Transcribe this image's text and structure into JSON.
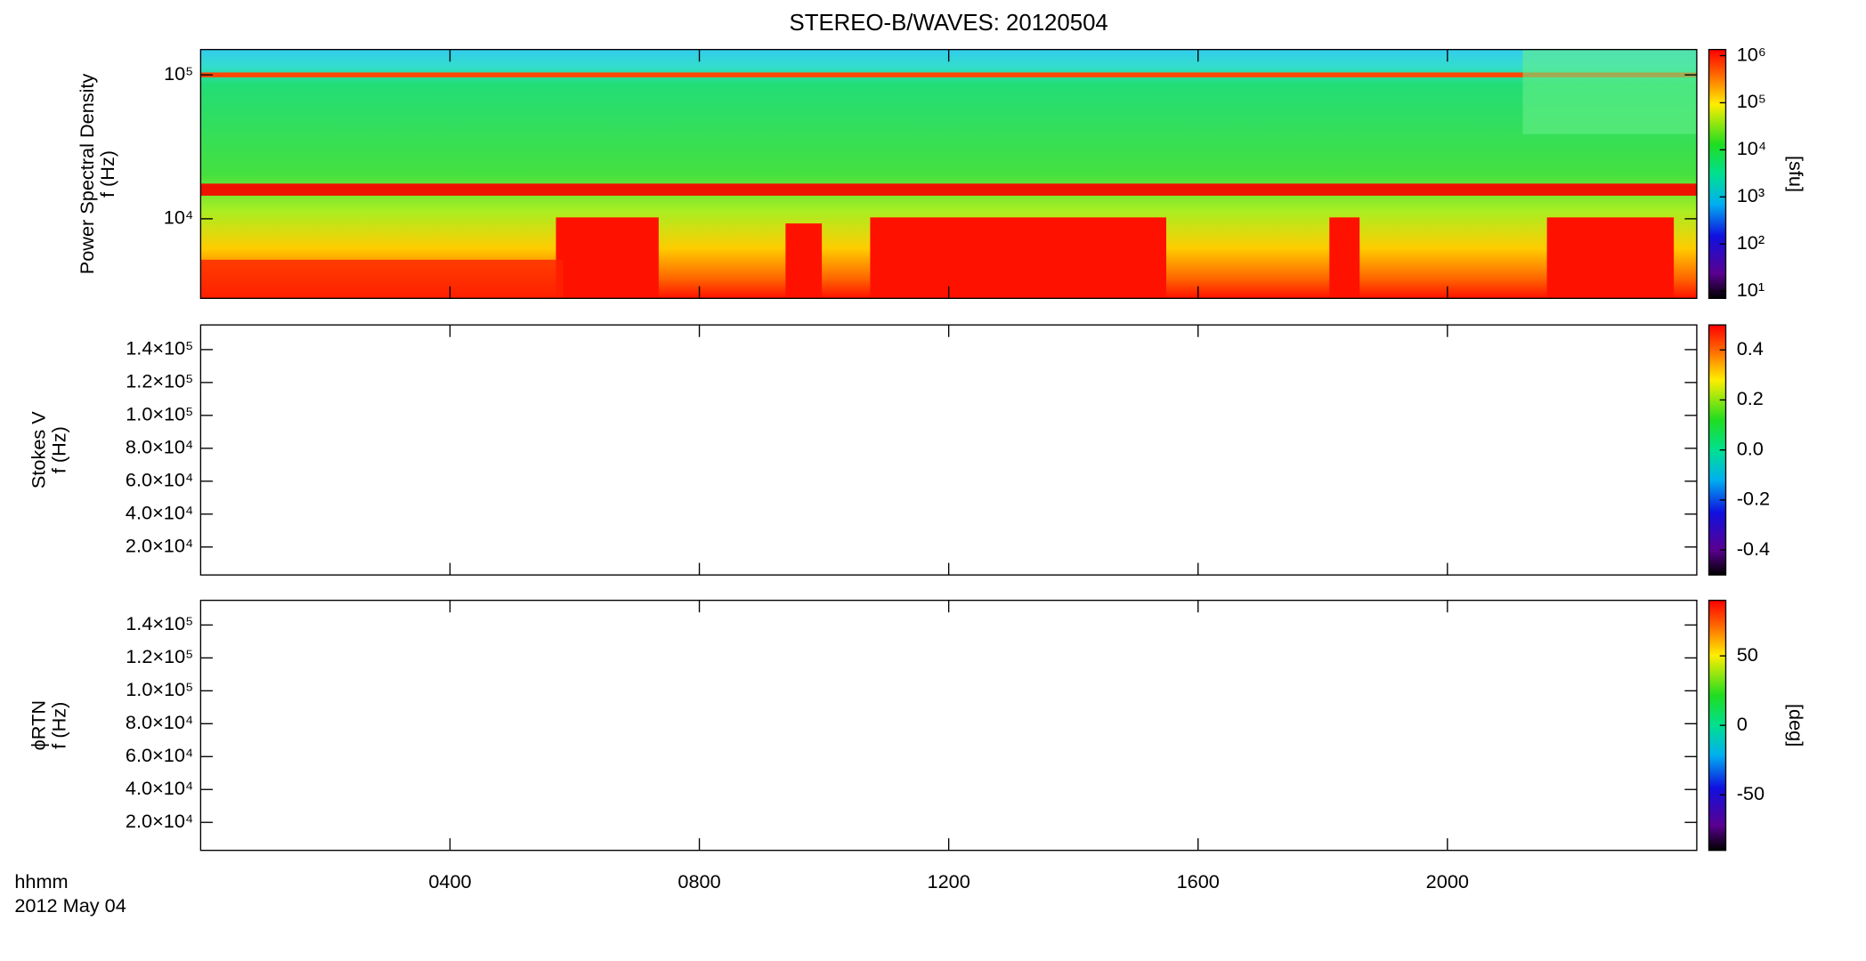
{
  "chart_data": [
    {
      "type": "spectrogram",
      "title": "STEREO-B/WAVES: 20120504",
      "ylabel": [
        "Power Spectral Density",
        "f (Hz)"
      ],
      "yscale": "log",
      "ylim": [
        2800,
        150000
      ],
      "yticks": [
        {
          "value": 10000,
          "label": "10⁴"
        },
        {
          "value": 100000,
          "label": "10⁵"
        }
      ],
      "cscale": "log",
      "clim": [
        7,
        1350000
      ],
      "cticks": [
        {
          "value": 10,
          "label": "10¹"
        },
        {
          "value": 100,
          "label": "10²"
        },
        {
          "value": 1000,
          "label": "10³"
        },
        {
          "value": 10000,
          "label": "10⁴"
        },
        {
          "value": 100000,
          "label": "10⁵"
        },
        {
          "value": 1000000,
          "label": "10⁶"
        }
      ],
      "clabel": "[sfu]"
    },
    {
      "type": "spectrogram",
      "ylabel": [
        "Stokes V",
        "f (Hz)"
      ],
      "yscale": "linear",
      "ylim": [
        3000,
        155000
      ],
      "yticks": [
        {
          "value": 20000,
          "label": "2.0×10⁴"
        },
        {
          "value": 40000,
          "label": "4.0×10⁴"
        },
        {
          "value": 60000,
          "label": "6.0×10⁴"
        },
        {
          "value": 80000,
          "label": "8.0×10⁴"
        },
        {
          "value": 100000,
          "label": "1.0×10⁵"
        },
        {
          "value": 120000,
          "label": "1.2×10⁵"
        },
        {
          "value": 140000,
          "label": "1.4×10⁵"
        }
      ],
      "cscale": "linear",
      "clim": [
        -0.5,
        0.5
      ],
      "cticks": [
        -0.4,
        -0.2,
        {
          "value": 0,
          "label": "0.0"
        },
        0.2,
        0.4
      ]
    },
    {
      "type": "spectrogram",
      "ylabel": [
        "ϕRTN",
        "f (Hz)"
      ],
      "yscale": "linear",
      "ylim": [
        3000,
        155000
      ],
      "yticks": [
        {
          "value": 20000,
          "label": "2.0×10⁴"
        },
        {
          "value": 40000,
          "label": "4.0×10⁴"
        },
        {
          "value": 60000,
          "label": "6.0×10⁴"
        },
        {
          "value": 80000,
          "label": "8.0×10⁴"
        },
        {
          "value": 100000,
          "label": "1.0×10⁵"
        },
        {
          "value": 120000,
          "label": "1.2×10⁵"
        },
        {
          "value": 140000,
          "label": "1.4×10⁵"
        }
      ],
      "cscale": "linear",
      "clim": [
        -90,
        90
      ],
      "cticks": [
        -50,
        0,
        50
      ],
      "clabel": "[deg]",
      "xlabel": "hhmm",
      "date": "2012 May 04",
      "xlim": [
        0,
        1440
      ],
      "xticks": [
        {
          "value": 240,
          "label": "0400"
        },
        {
          "value": 480,
          "label": "0800"
        },
        {
          "value": 720,
          "label": "1200"
        },
        {
          "value": 960,
          "label": "1600"
        },
        {
          "value": 1200,
          "label": "2000"
        }
      ]
    }
  ]
}
